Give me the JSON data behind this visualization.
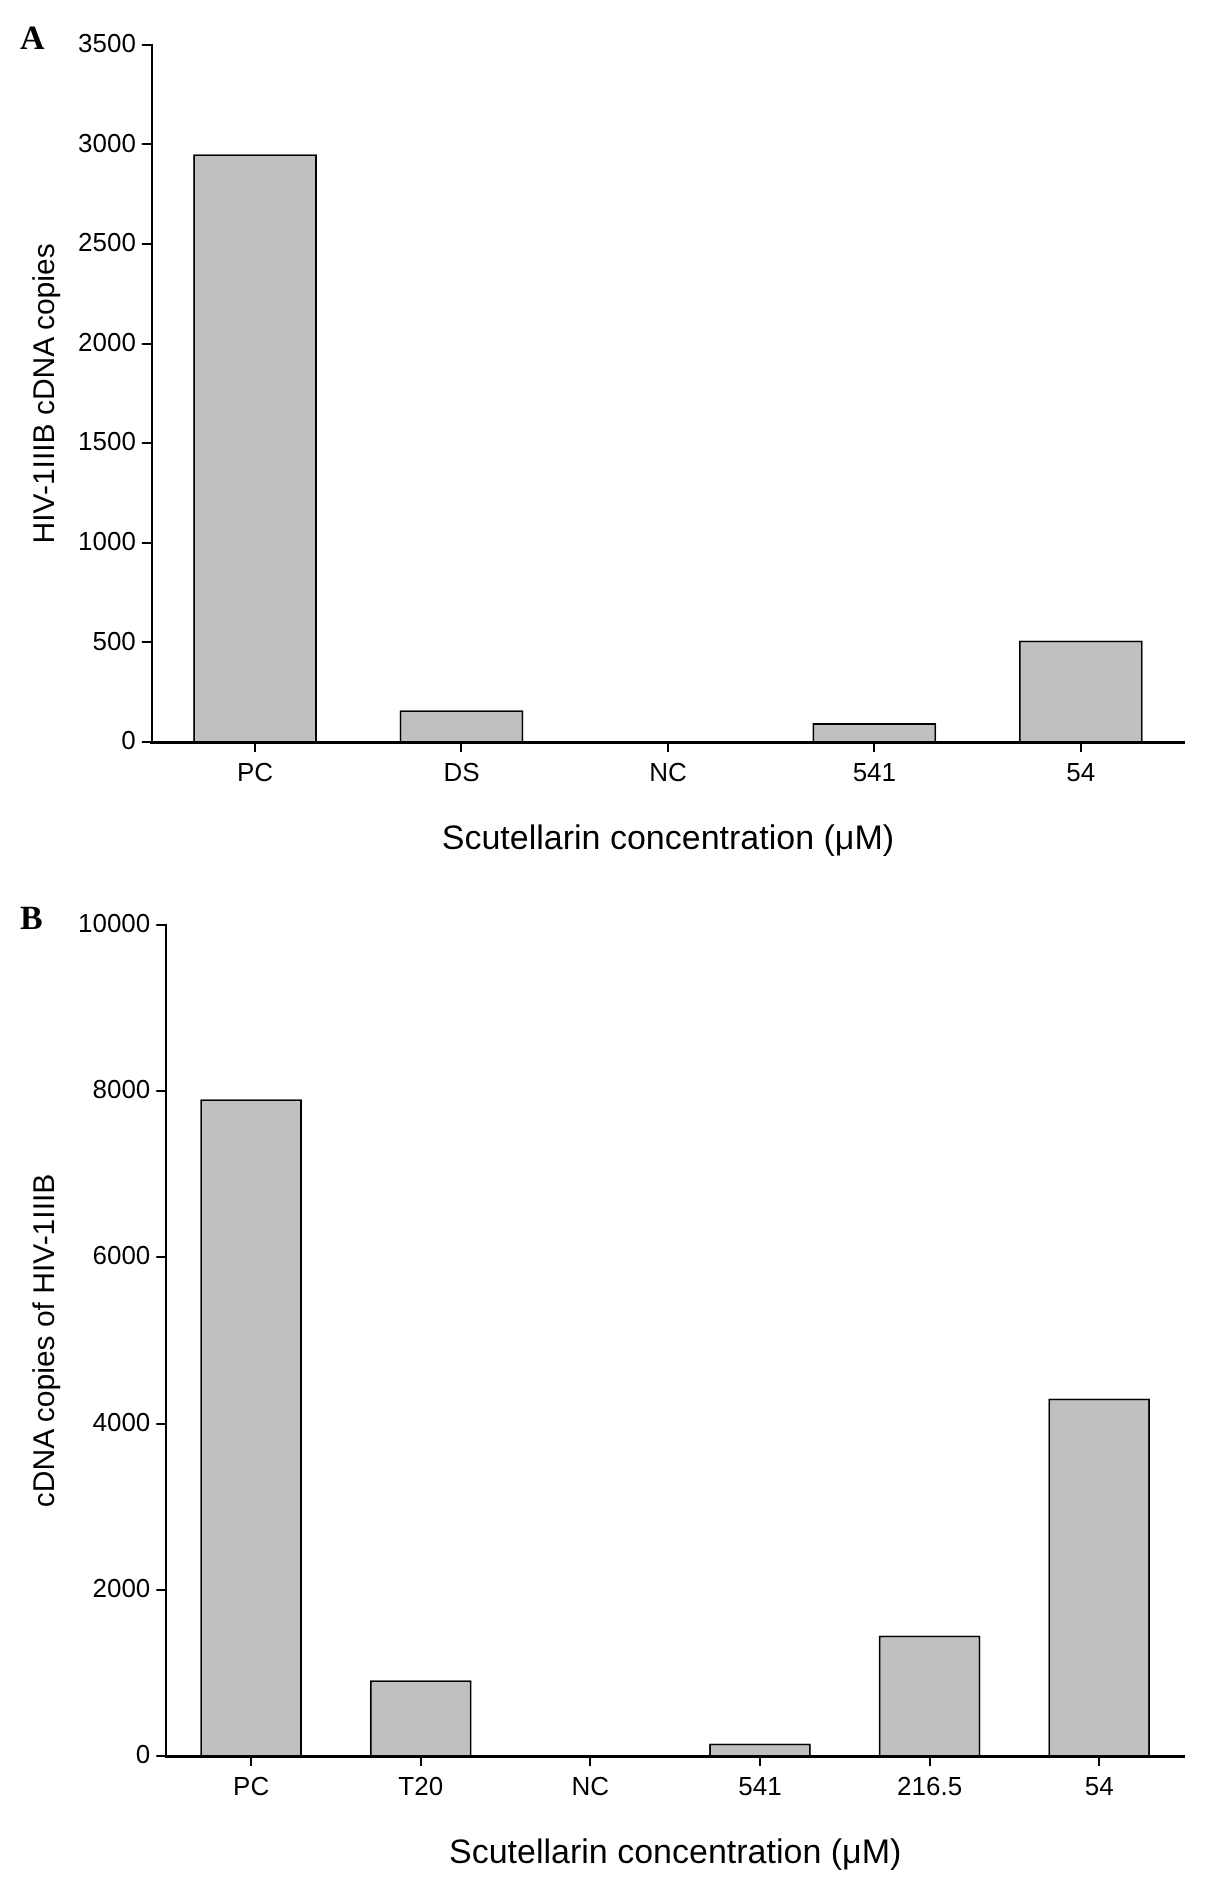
{
  "chart_data": [
    {
      "type": "bar",
      "title": "A",
      "xlabel": "Scutellarin concentration (μM)",
      "ylabel": "HIV-1IIIB cDNA copies",
      "categories": [
        "PC",
        "DS",
        "NC",
        "541",
        "54"
      ],
      "values": [
        2950,
        160,
        0,
        95,
        510
      ],
      "color": "#c0c0c0",
      "ylim": [
        0,
        3500
      ],
      "yticks": [
        0,
        500,
        1000,
        1500,
        2000,
        2500,
        3000,
        3500
      ],
      "grid": false,
      "legend": false
    },
    {
      "type": "bar",
      "title": "B",
      "xlabel": "Scutellarin concentration (μM)",
      "ylabel": "cDNA copies of HIV-1IIIB",
      "categories": [
        "PC",
        "T20",
        "NC",
        "541",
        "216.5",
        "54"
      ],
      "values": [
        7900,
        910,
        0,
        150,
        1450,
        4300
      ],
      "color": "#c0c0c0",
      "ylim": [
        0,
        10000
      ],
      "yticks": [
        0,
        2000,
        4000,
        6000,
        8000,
        10000
      ],
      "grid": false,
      "legend": false
    }
  ]
}
